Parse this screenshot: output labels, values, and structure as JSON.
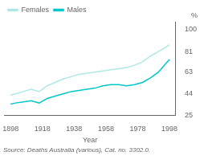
{
  "chart_data": {
    "type": "line",
    "x": [
      1898,
      1901,
      1906,
      1911,
      1916,
      1921,
      1926,
      1931,
      1936,
      1941,
      1946,
      1951,
      1956,
      1961,
      1966,
      1971,
      1976,
      1981,
      1986,
      1991,
      1996,
      1998
    ],
    "series": [
      {
        "name": "Females",
        "color": "#b0e8e8",
        "values": [
          43,
          44,
          46,
          48,
          46,
          51,
          54,
          57,
          59,
          61,
          62,
          63,
          64,
          65,
          66,
          67,
          69,
          72,
          77,
          81,
          85,
          87
        ]
      },
      {
        "name": "Males",
        "color": "#00c8c8",
        "values": [
          35,
          36,
          37,
          38,
          36,
          40,
          42,
          44,
          46,
          47,
          48,
          49,
          51,
          52,
          52,
          51,
          52,
          54,
          58,
          63,
          71,
          74
        ]
      }
    ],
    "xlabel": "Year",
    "ylabel": "%",
    "annotations": [
      "Source: Deaths Australia (various), Cat. no. 3302.0."
    ],
    "xlim": [
      1894,
      2002
    ],
    "ylim": [
      25,
      107
    ],
    "xticks": [
      1898,
      1918,
      1938,
      1958,
      1978,
      1998
    ],
    "yticks": [
      25,
      44,
      63,
      81,
      100
    ],
    "grid": false,
    "legend": "upper left"
  }
}
